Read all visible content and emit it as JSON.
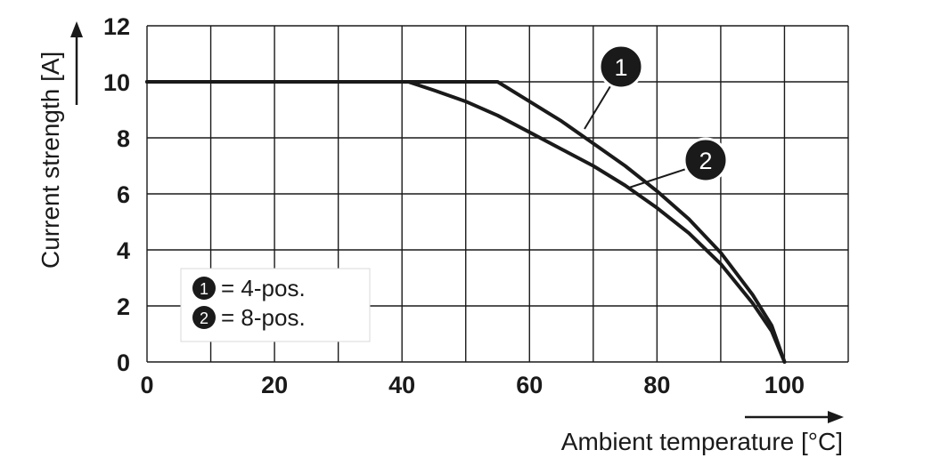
{
  "chart_data": {
    "type": "line",
    "xlabel": "Ambient temperature [°C]",
    "ylabel": "Current strength [A]",
    "xlim": [
      0,
      110
    ],
    "ylim": [
      0,
      12
    ],
    "x_ticks": [
      0,
      20,
      40,
      60,
      80,
      100
    ],
    "x_tick_labels": [
      "0",
      "20",
      "40",
      "60",
      "80",
      "100"
    ],
    "y_ticks": [
      0,
      2,
      4,
      6,
      8,
      10,
      12
    ],
    "y_tick_labels": [
      "0",
      "2",
      "4",
      "6",
      "8",
      "10",
      "12"
    ],
    "grid": true,
    "grid_x_step": 10,
    "grid_y_step": 2,
    "series": [
      {
        "name": "1",
        "x": [
          0,
          55,
          60,
          65,
          70,
          75,
          80,
          85,
          90,
          95,
          98,
          100
        ],
        "y": [
          10,
          10,
          9.3,
          8.6,
          7.8,
          7.0,
          6.1,
          5.1,
          3.9,
          2.4,
          1.3,
          0
        ]
      },
      {
        "name": "2",
        "x": [
          0,
          41,
          45,
          50,
          55,
          60,
          65,
          70,
          75,
          80,
          85,
          90,
          95,
          98,
          100
        ],
        "y": [
          10,
          10,
          9.7,
          9.3,
          8.8,
          8.2,
          7.6,
          7.0,
          6.3,
          5.5,
          4.6,
          3.5,
          2.1,
          1.1,
          0
        ]
      }
    ],
    "legend": {
      "placement": "bottom-left",
      "entries": [
        {
          "badge": "1",
          "text": "= 4-pos."
        },
        {
          "badge": "2",
          "text": "= 8-pos."
        }
      ]
    },
    "callouts": [
      {
        "badge": "1",
        "series": 0
      },
      {
        "badge": "2",
        "series": 1
      }
    ]
  },
  "colors": {
    "curve": "#1a1a1a",
    "grid": "#1a1a1a",
    "badge_fill": "#1a1a1a",
    "badge_text": "#ffffff",
    "background": "#ffffff"
  }
}
